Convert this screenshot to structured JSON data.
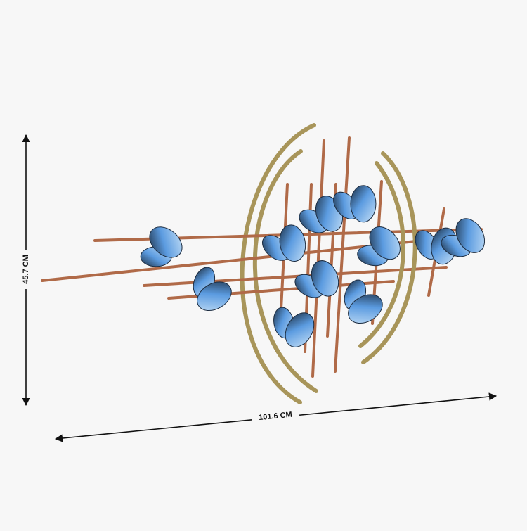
{
  "dimensions": {
    "height": "45.7 CM",
    "width": "101.6 CM"
  }
}
